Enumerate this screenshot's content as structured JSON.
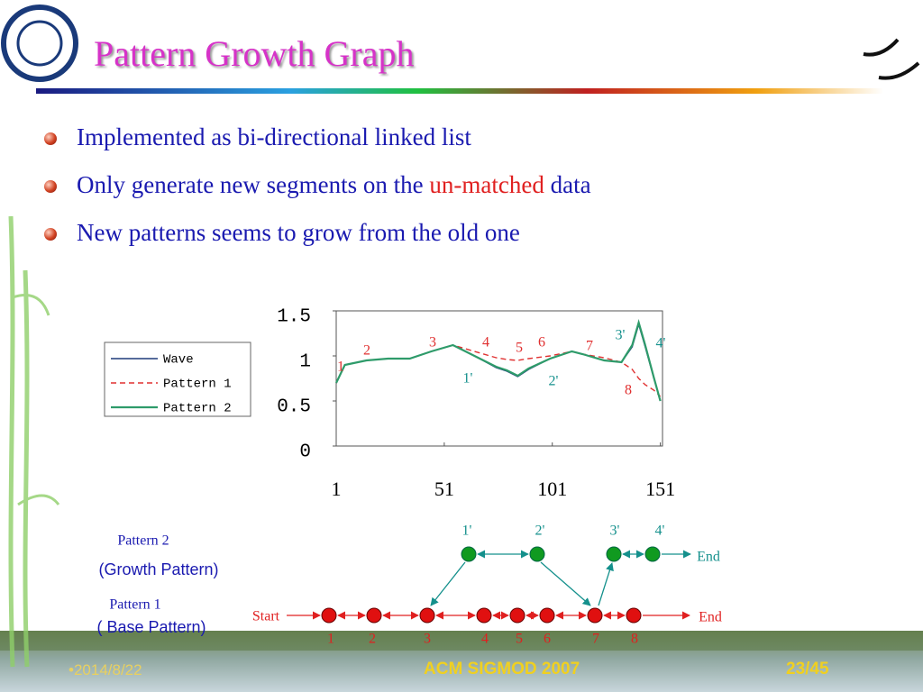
{
  "header": {
    "title": "Pattern Growth Graph"
  },
  "bullets": [
    [
      "Implemented as bi-directional linked list"
    ],
    [
      "Only generate new segments on the",
      "un-matched",
      "data"
    ],
    [
      "New patterns seems to grow from the old one"
    ]
  ],
  "chart_data": {
    "type": "line",
    "x": [
      1,
      5,
      15,
      25,
      35,
      45,
      55,
      65,
      75,
      80,
      85,
      90,
      100,
      110,
      115,
      125,
      133,
      138,
      141,
      144,
      148,
      151
    ],
    "series": [
      {
        "name": "Wave",
        "color": "#1f3a7a",
        "dash": false,
        "values": [
          0.7,
          0.9,
          0.95,
          0.97,
          0.97,
          1.05,
          1.12,
          1.0,
          0.87,
          0.83,
          0.77,
          0.85,
          0.97,
          1.05,
          1.02,
          0.95,
          0.93,
          1.1,
          1.35,
          1.1,
          0.75,
          0.5
        ]
      },
      {
        "name": "Pattern 1",
        "color": "#e03030",
        "dash": true,
        "values": [
          0.7,
          0.9,
          0.95,
          0.97,
          0.97,
          1.05,
          1.12,
          1.05,
          0.98,
          0.96,
          0.95,
          0.97,
          1.0,
          1.05,
          1.02,
          0.98,
          0.93,
          0.85,
          0.75,
          0.68,
          0.62,
          0.55
        ]
      },
      {
        "name": "Pattern 2",
        "color": "#2e9b6a",
        "dash": false,
        "values": [
          0.7,
          0.9,
          0.95,
          0.97,
          0.97,
          1.05,
          1.12,
          1.0,
          0.88,
          0.84,
          0.78,
          0.86,
          0.97,
          1.05,
          1.02,
          0.95,
          0.93,
          1.12,
          1.37,
          1.12,
          0.76,
          0.5
        ]
      }
    ],
    "xlim": [
      1,
      152
    ],
    "ylim": [
      0,
      1.5
    ],
    "xticks": [
      1,
      51,
      101,
      151
    ],
    "yticks": [
      0,
      0.5,
      1,
      1.5
    ],
    "grid": false,
    "legend": "left",
    "annotations": [
      {
        "text": "1",
        "color": "#e03030"
      },
      {
        "text": "2",
        "color": "#e03030"
      },
      {
        "text": "3",
        "color": "#e03030"
      },
      {
        "text": "4",
        "color": "#e03030"
      },
      {
        "text": "5",
        "color": "#e03030"
      },
      {
        "text": "6",
        "color": "#e03030"
      },
      {
        "text": "7",
        "color": "#e03030"
      },
      {
        "text": "8",
        "color": "#e03030"
      },
      {
        "text": "1'",
        "color": "#14908c"
      },
      {
        "text": "2'",
        "color": "#14908c"
      },
      {
        "text": "3'",
        "color": "#14908c"
      },
      {
        "text": "4'",
        "color": "#14908c"
      }
    ]
  },
  "diagram": {
    "growth_label": "Pattern 2",
    "growth_sub": "(Growth Pattern)",
    "base_label": "Pattern 1",
    "base_sub": "( Base Pattern)",
    "start": "Start",
    "end_top": "End",
    "end_bottom": "End",
    "base_nodes": [
      "1",
      "2",
      "3",
      "4",
      "5",
      "6",
      "7",
      "8"
    ],
    "growth_nodes": [
      "1'",
      "2'",
      "3'",
      "4'"
    ]
  },
  "footer": {
    "date": "2014/8/22",
    "conference": "ACM SIGMOD 2007",
    "page": "23/45"
  }
}
